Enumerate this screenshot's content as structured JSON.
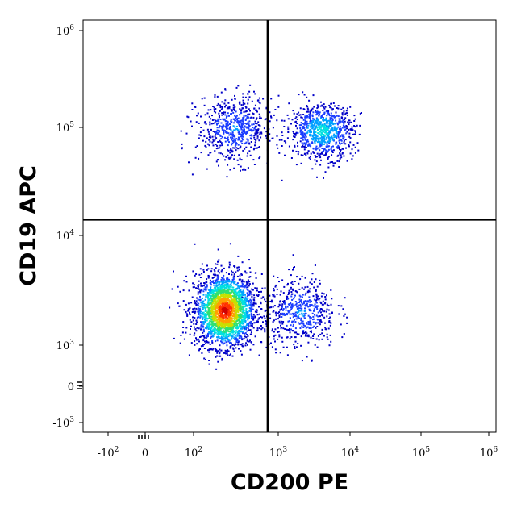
{
  "chart_data": {
    "type": "scatter",
    "title": "",
    "xlabel": "CD200 PE",
    "ylabel": "CD19 APC",
    "x_scale": "biexponential",
    "y_scale": "biexponential",
    "xlim": [
      -300,
      1200000
    ],
    "ylim": [
      -1500,
      1200000
    ],
    "x_ticks": [
      {
        "base": "-10",
        "exp": "2",
        "value": -100
      },
      {
        "base": "0",
        "exp": "",
        "value": 0
      },
      {
        "base": "10",
        "exp": "2",
        "value": 100
      },
      {
        "base": "10",
        "exp": "3",
        "value": 1000
      },
      {
        "base": "10",
        "exp": "4",
        "value": 10000
      },
      {
        "base": "10",
        "exp": "5",
        "value": 100000
      },
      {
        "base": "10",
        "exp": "6",
        "value": 1000000
      }
    ],
    "y_ticks": [
      {
        "base": "10",
        "exp": "6",
        "value": 1000000
      },
      {
        "base": "10",
        "exp": "5",
        "value": 100000
      },
      {
        "base": "10",
        "exp": "4",
        "value": 10000
      },
      {
        "base": "10",
        "exp": "3",
        "value": 1000
      },
      {
        "base": "0",
        "exp": "",
        "value": 0
      },
      {
        "base": "-10",
        "exp": "3",
        "value": -1000
      }
    ],
    "quadrant_gate": {
      "x": 750,
      "y": 14000
    },
    "populations": [
      {
        "center_x": 230,
        "center_y": 2100,
        "spread_log_x": 0.18,
        "spread_log_y": 0.17,
        "events": 2400,
        "peak_color": "#e01010"
      },
      {
        "center_x": 2000,
        "center_y": 2000,
        "spread_log_x": 0.25,
        "spread_log_y": 0.16,
        "events": 550,
        "peak_color": "#1030c0"
      },
      {
        "center_x": 300,
        "center_y": 100000,
        "spread_log_x": 0.22,
        "spread_log_y": 0.16,
        "events": 650,
        "peak_color": "#2050d0"
      },
      {
        "center_x": 4000,
        "center_y": 95000,
        "spread_log_x": 0.22,
        "spread_log_y": 0.13,
        "events": 850,
        "peak_color": "#30c0e0"
      }
    ],
    "density_colors": [
      "#0000c8",
      "#1a3cff",
      "#00a0ff",
      "#00e0e0",
      "#30e070",
      "#c8e000",
      "#ffa000",
      "#ff3000",
      "#d00000"
    ],
    "grid": false,
    "legend": "none"
  }
}
